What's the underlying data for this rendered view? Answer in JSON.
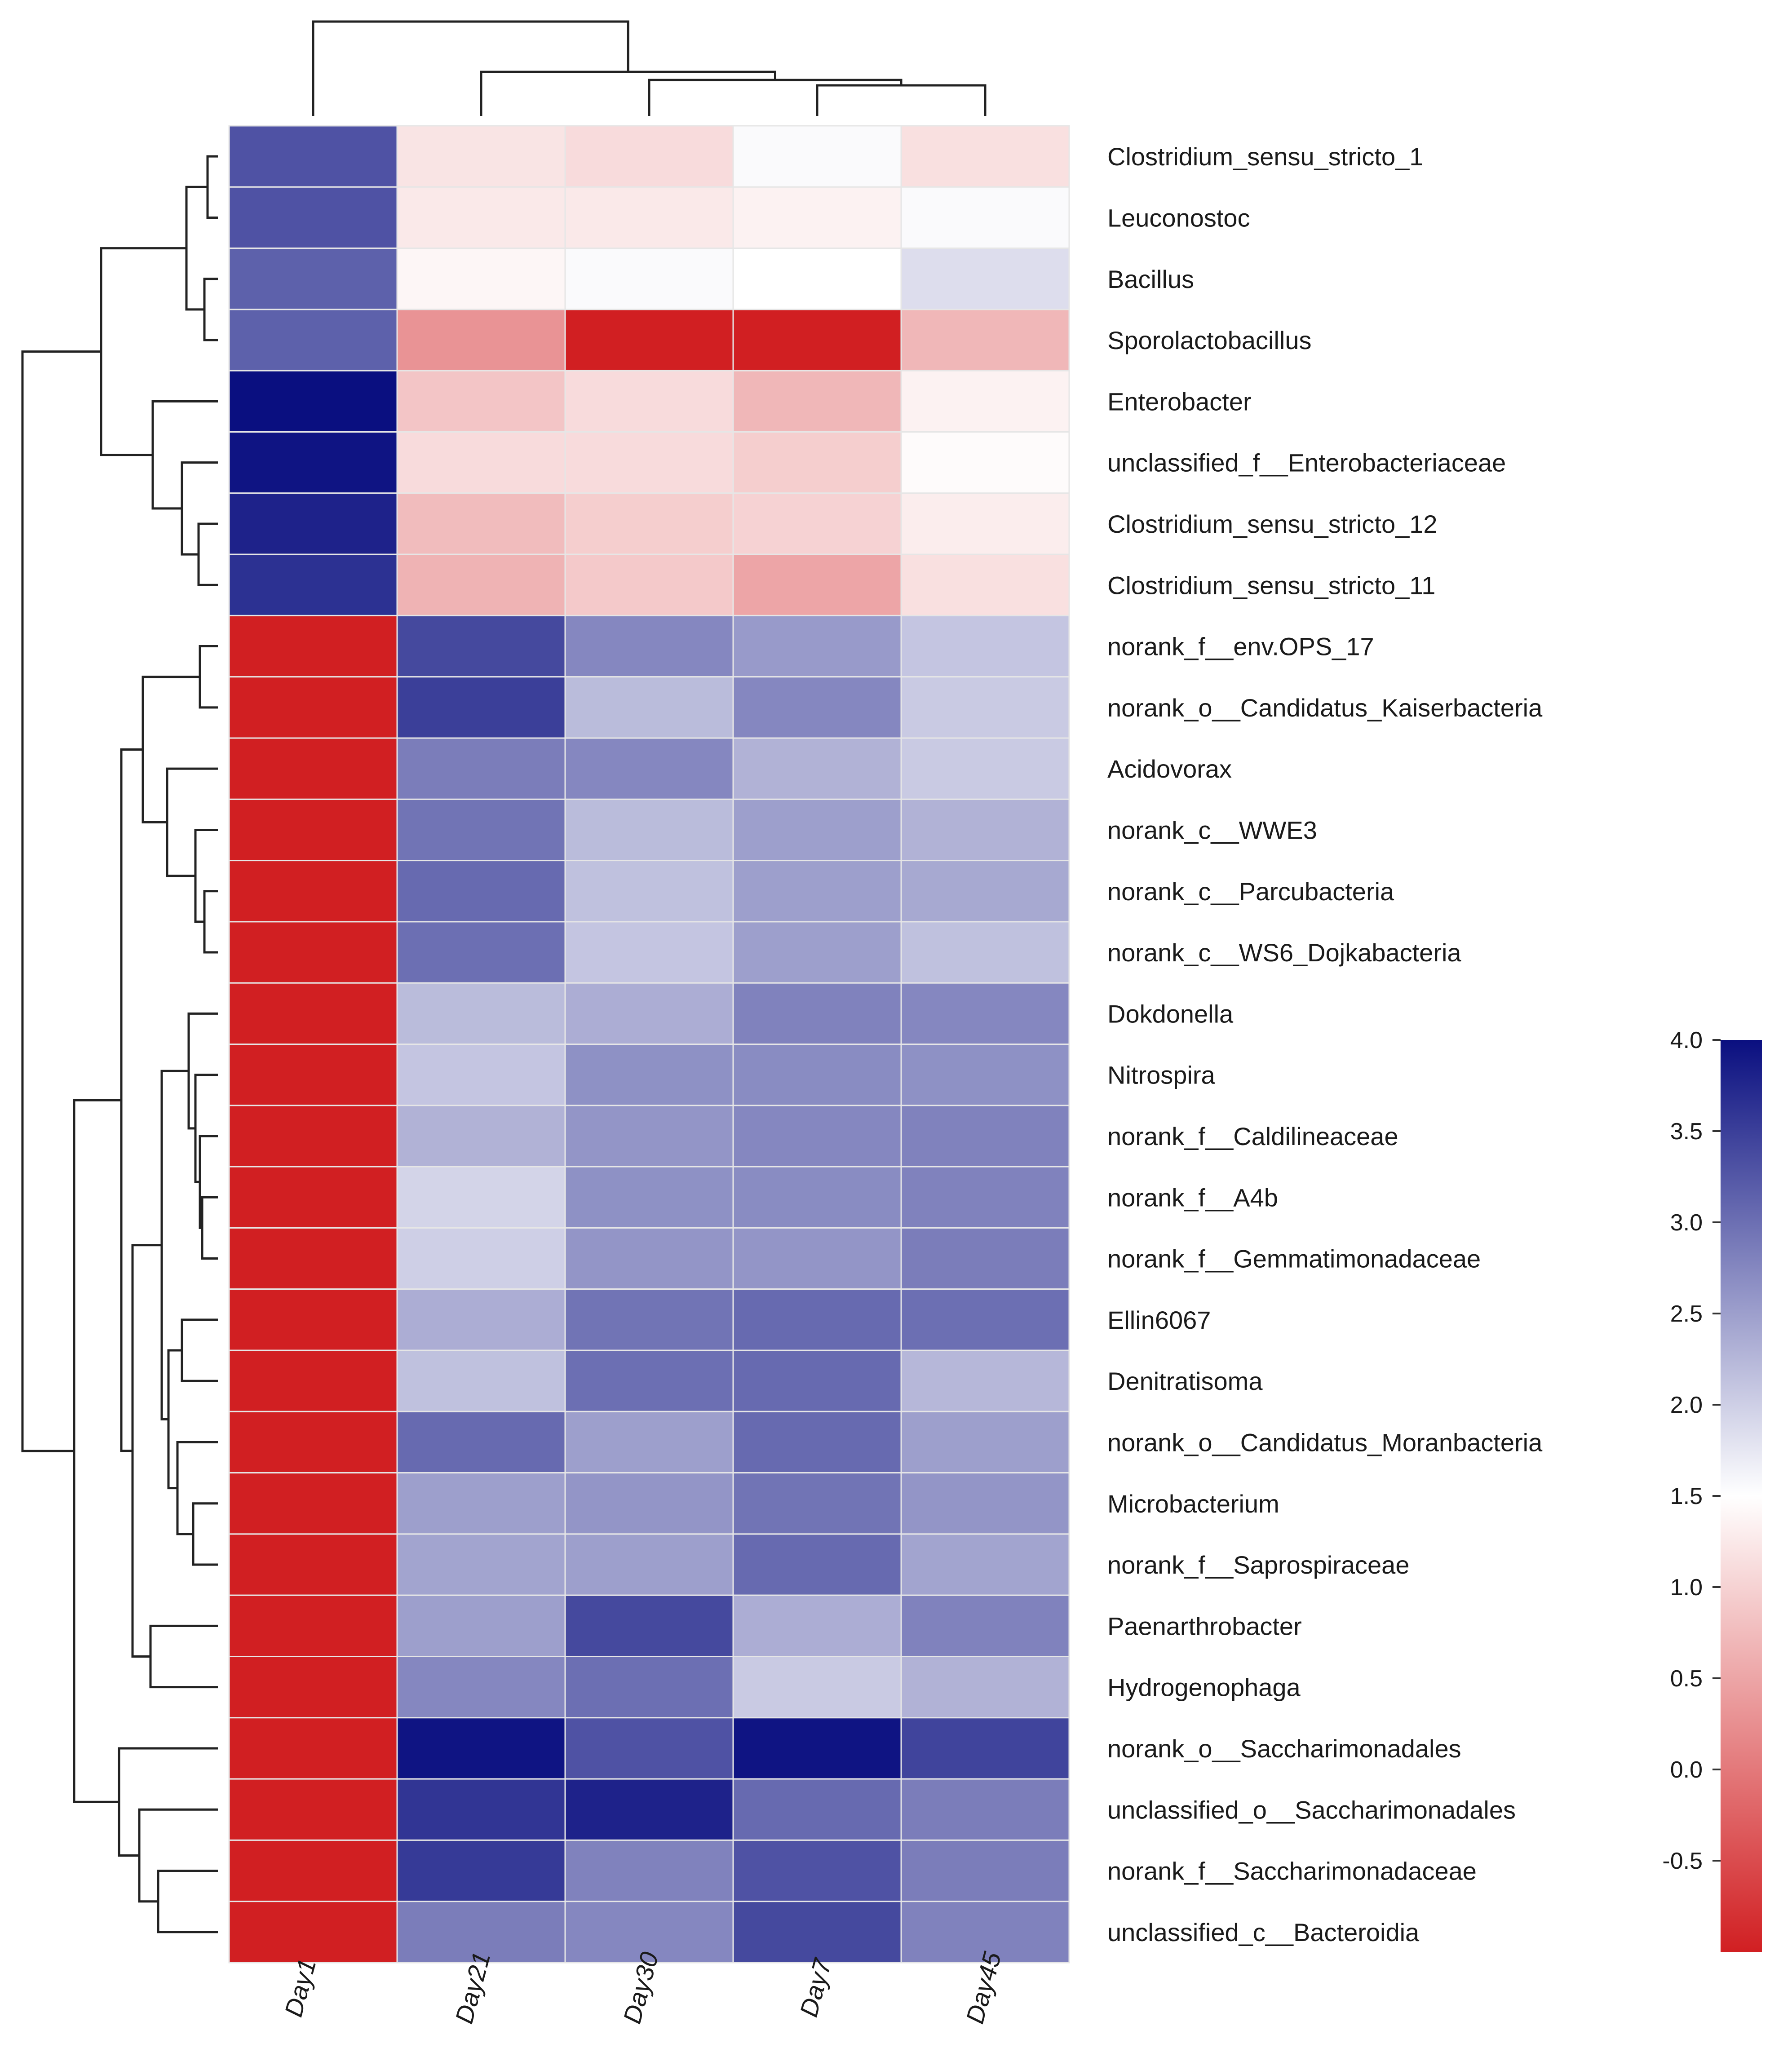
{
  "chart_data": {
    "type": "heatmap",
    "columns": [
      "Day1",
      "Day21",
      "Day30",
      "Day7",
      "Day45"
    ],
    "rows": [
      "Clostridium_sensu_stricto_1",
      "Leuconostoc",
      "Bacillus",
      "Sporolactobacillus",
      "Enterobacter",
      "unclassified_f__Enterobacteriaceae",
      "Clostridium_sensu_stricto_12",
      "Clostridium_sensu_stricto_11",
      "norank_f__env.OPS_17",
      "norank_o__Candidatus_Kaiserbacteria",
      "Acidovorax",
      "norank_c__WWE3",
      "norank_c__Parcubacteria",
      "norank_c__WS6_Dojkabacteria",
      "Dokdonella",
      "Nitrospira",
      "norank_f__Caldilineaceae",
      "norank_f__A4b",
      "norank_f__Gemmatimonadaceae",
      "Ellin6067",
      "Denitratisoma",
      "norank_o__Candidatus_Moranbacteria",
      "Microbacterium",
      "norank_f__Saprospiraceae",
      "Paenarthrobacter",
      "Hydrogenophaga",
      "norank_o__Saccharimonadales",
      "unclassified_o__Saccharimonadales",
      "norank_f__Saccharimonadaceae",
      "unclassified_c__Bacteroidia"
    ],
    "values": [
      [
        3.3,
        1.2,
        1.1,
        1.55,
        1.15
      ],
      [
        3.3,
        1.25,
        1.25,
        1.35,
        1.55
      ],
      [
        3.15,
        1.4,
        1.55,
        1.5,
        1.85
      ],
      [
        3.15,
        0.3,
        -1.0,
        -1.0,
        0.7
      ],
      [
        4.1,
        0.85,
        1.1,
        0.7,
        1.35
      ],
      [
        3.95,
        1.1,
        1.1,
        0.95,
        1.45
      ],
      [
        3.8,
        0.75,
        0.95,
        1.0,
        1.3
      ],
      [
        3.65,
        0.65,
        0.9,
        0.5,
        1.15
      ],
      [
        -1.0,
        3.4,
        2.75,
        2.55,
        2.1
      ],
      [
        -1.0,
        3.5,
        2.2,
        2.75,
        2.05
      ],
      [
        -1.0,
        2.85,
        2.75,
        2.3,
        2.05
      ],
      [
        -1.0,
        2.95,
        2.2,
        2.5,
        2.3
      ],
      [
        -1.0,
        3.05,
        2.15,
        2.5,
        2.4
      ],
      [
        -1.0,
        3.0,
        2.1,
        2.5,
        2.15
      ],
      [
        -1.0,
        2.2,
        2.35,
        2.8,
        2.75
      ],
      [
        -1.0,
        2.1,
        2.65,
        2.7,
        2.65
      ],
      [
        -1.0,
        2.3,
        2.6,
        2.75,
        2.8
      ],
      [
        -1.0,
        1.95,
        2.65,
        2.7,
        2.8
      ],
      [
        -1.0,
        2.0,
        2.6,
        2.6,
        2.85
      ],
      [
        -1.0,
        2.35,
        2.95,
        3.05,
        3.0
      ],
      [
        -1.0,
        2.15,
        3.0,
        3.05,
        2.25
      ],
      [
        -1.0,
        3.05,
        2.5,
        3.05,
        2.5
      ],
      [
        -1.0,
        2.5,
        2.6,
        2.95,
        2.6
      ],
      [
        -1.0,
        2.45,
        2.5,
        3.05,
        2.45
      ],
      [
        -1.0,
        2.5,
        3.4,
        2.35,
        2.8
      ],
      [
        -1.0,
        2.75,
        3.0,
        2.05,
        2.3
      ],
      [
        -1.0,
        3.95,
        3.3,
        3.95,
        3.45
      ],
      [
        -1.0,
        3.6,
        3.8,
        3.05,
        2.85
      ],
      [
        -1.0,
        3.55,
        2.8,
        3.3,
        2.85
      ],
      [
        -1.0,
        2.85,
        2.75,
        3.4,
        2.8
      ]
    ],
    "colorbar": {
      "ticks": [
        "4.0",
        "3.5",
        "3.0",
        "2.5",
        "2.0",
        "1.5",
        "1.0",
        "0.5",
        "0.0",
        "-0.5"
      ],
      "min": -1.0,
      "max": 4.0,
      "colors": {
        "low": "#d11f22",
        "mid": "#ffffff",
        "high": "#0a0f80"
      },
      "mid_value": 1.5
    },
    "colors": {
      "grid_line": "#e6e6e6",
      "dendrogram": "#222222"
    }
  }
}
